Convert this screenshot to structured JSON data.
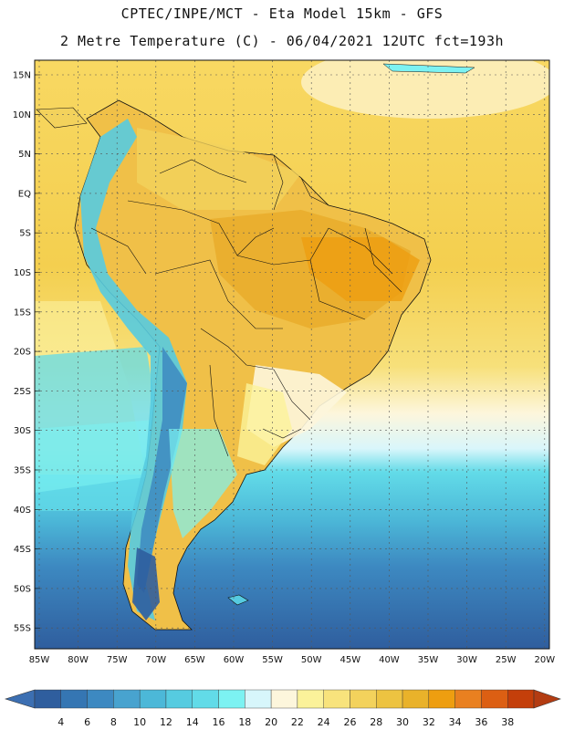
{
  "header": {
    "line1": "CPTEC/INPE/MCT -  Eta Model 15km - GFS",
    "line2": "2 Metre Temperature (C) - 06/04/2021 12UTC fct=193h"
  },
  "map": {
    "lat_labels": [
      "15N",
      "10N",
      "5N",
      "EQ",
      "5S",
      "10S",
      "15S",
      "20S",
      "25S",
      "30S",
      "35S",
      "40S",
      "45S",
      "50S",
      "55S"
    ],
    "lon_labels": [
      "85W",
      "80W",
      "75W",
      "70W",
      "65W",
      "60W",
      "55W",
      "50W",
      "45W",
      "40W",
      "35W",
      "30W",
      "25W",
      "20W"
    ]
  },
  "colorbar": {
    "ticks": [
      "4",
      "6",
      "8",
      "10",
      "12",
      "14",
      "16",
      "18",
      "20",
      "22",
      "24",
      "26",
      "28",
      "30",
      "32",
      "34",
      "36",
      "38"
    ],
    "low_color": "#3c6fb2",
    "high_color": "#b33c12",
    "colors": [
      "#2f5e9e",
      "#3576b3",
      "#3d89c1",
      "#48a3cf",
      "#4cb8d8",
      "#56cbe0",
      "#62dbe8",
      "#7cf2f2",
      "#d7f6fb",
      "#fdf6dc",
      "#fbf29a",
      "#f8e37c",
      "#f3d25c",
      "#edc341",
      "#e9b22a",
      "#ee9e10",
      "#e98020",
      "#dc5f13",
      "#c43f0a",
      "#a8310c"
    ]
  }
}
